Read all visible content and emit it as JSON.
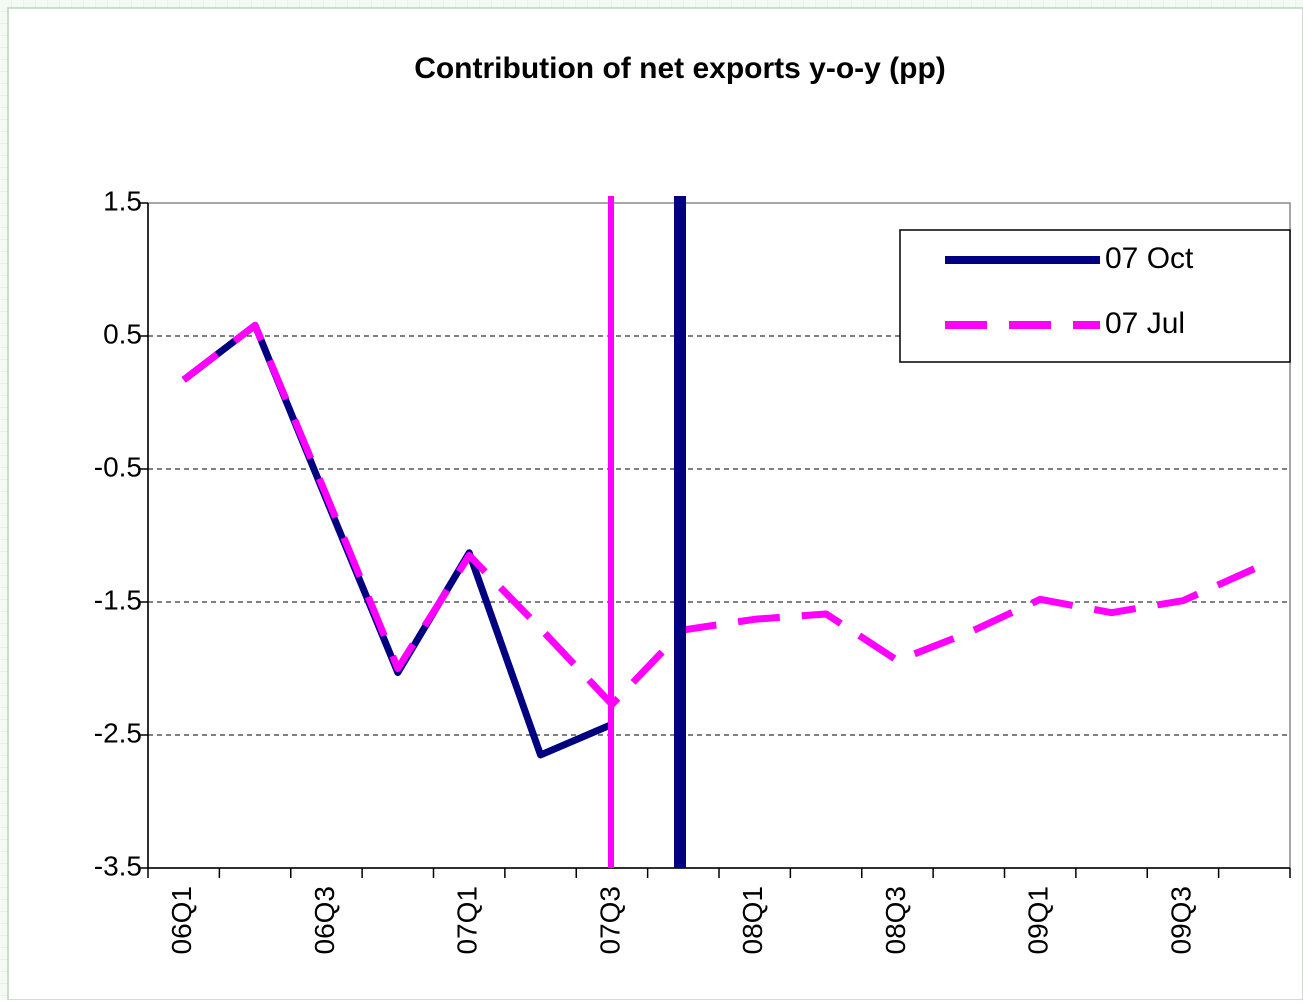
{
  "chart_data": {
    "type": "line",
    "title": "Contribution of net exports y-o-y (pp)",
    "categories": [
      "06Q1",
      null,
      "06Q3",
      null,
      "07Q1",
      null,
      "07Q3",
      null,
      "08Q1",
      null,
      "08Q3",
      null,
      "09Q1",
      null,
      "09Q3",
      null
    ],
    "series": [
      {
        "name": "07 Oct",
        "color": "#000080",
        "values": [
          0.17,
          0.58,
          -0.73,
          -2.03,
          -1.13,
          -2.65,
          -2.42,
          null,
          null,
          null,
          null,
          null,
          null,
          null,
          null,
          null
        ]
      },
      {
        "name": "07 Jul",
        "color": "#FF00FF",
        "dashed": true,
        "values": [
          0.17,
          0.58,
          -0.7,
          -2.0,
          -1.15,
          -1.7,
          -2.27,
          -1.71,
          -1.63,
          -1.59,
          -1.94,
          -1.73,
          -1.48,
          -1.58,
          -1.49,
          -1.25
        ]
      }
    ],
    "ylim": [
      -3.5,
      1.5
    ],
    "yticks": [
      -3.5,
      -2.5,
      -1.5,
      -0.5,
      0.5,
      1.5
    ],
    "grid": true,
    "legend": "upper right"
  }
}
